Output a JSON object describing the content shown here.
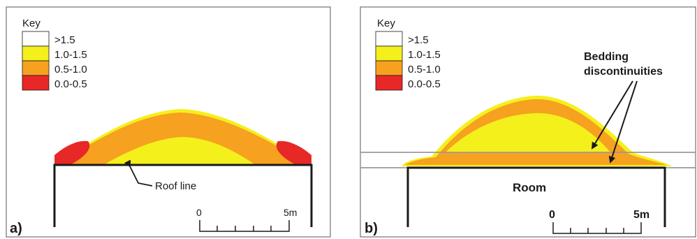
{
  "colors": {
    "above_1_5": "#ffffff",
    "range_1_0_1_5": "#f4f01c",
    "range_0_5_1_0": "#f6a11f",
    "range_0_0_0_5": "#e82826",
    "outline": "#1a1a1a",
    "bedding_line": "#9a9a9a"
  },
  "panel_a": {
    "key_title": "Key",
    "legend": [
      {
        "label": ">1.5",
        "color_key": "above_1_5"
      },
      {
        "label": "1.0-1.5",
        "color_key": "range_1_0_1_5"
      },
      {
        "label": "0.5-1.0",
        "color_key": "range_0_5_1_0"
      },
      {
        "label": "0.0-0.5",
        "color_key": "range_0_0_0_5"
      }
    ],
    "roof_label": "Roof line",
    "scale_start": "0",
    "scale_end": "5m",
    "panel_label": "a)"
  },
  "panel_b": {
    "key_title": "Key",
    "legend": [
      {
        "label": ">1.5",
        "color_key": "above_1_5"
      },
      {
        "label": "1.0-1.5",
        "color_key": "range_1_0_1_5"
      },
      {
        "label": "0.5-1.0",
        "color_key": "range_0_5_1_0"
      },
      {
        "label": "0.0-0.5",
        "color_key": "range_0_0_0_5"
      }
    ],
    "bedding_label_line1": "Bedding",
    "bedding_label_line2": "discontinuities",
    "room_label": "Room",
    "scale_start": "0",
    "scale_end": "5m",
    "panel_label": "b)"
  }
}
